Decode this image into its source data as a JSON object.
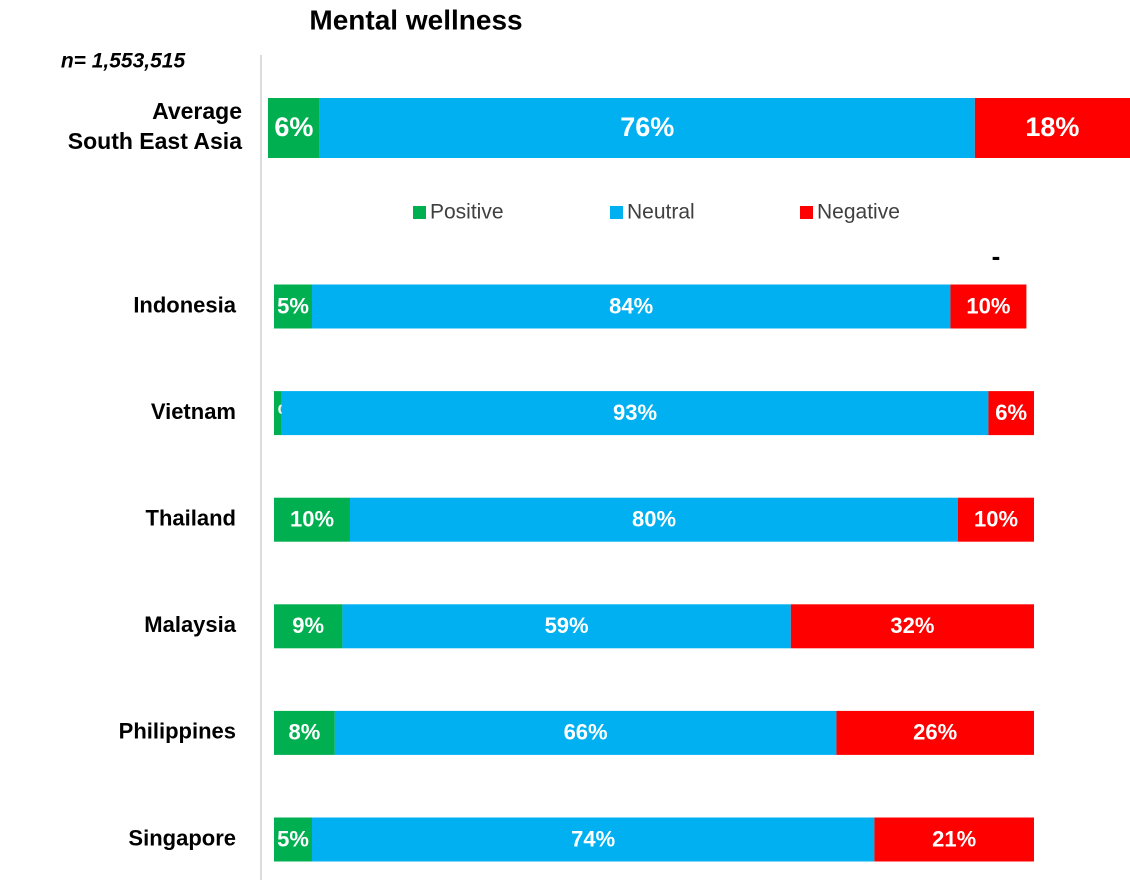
{
  "chart_data": [
    {
      "type": "stacked-bar",
      "title": "Mental wellness",
      "subtitle": "n= 1,553,515",
      "categories": [
        "Average\nSouth East Asia"
      ],
      "xlim": [
        0,
        100
      ],
      "series": [
        {
          "color": "#00b050",
          "values": [
            6
          ],
          "value_labels": [
            "6%"
          ]
        },
        {
          "color": "#00b0f0",
          "values": [
            76
          ],
          "value_labels": [
            "76%"
          ]
        },
        {
          "color": "#ff0000",
          "values": [
            18
          ],
          "value_labels": [
            "18%"
          ]
        }
      ]
    },
    {
      "type": "stacked-bar",
      "annotations": [
        "-"
      ],
      "categories": [
        "Indonesia",
        "Vietnam",
        "Thailand",
        "Malaysia",
        "Philippines",
        "Singapore"
      ],
      "xlim": [
        0,
        100
      ],
      "series": [
        {
          "name": "Positive",
          "color": "#00b050",
          "values": [
            5,
            1,
            10,
            9,
            8,
            5
          ],
          "value_labels": [
            "5%",
            "%",
            "10%",
            "9%",
            "8%",
            "5%"
          ]
        },
        {
          "name": "Neutral",
          "color": "#00b0f0",
          "values": [
            84,
            93,
            80,
            59,
            66,
            74
          ],
          "value_labels": [
            "84%",
            "93%",
            "80%",
            "59%",
            "66%",
            "74%"
          ]
        },
        {
          "name": "Negative",
          "color": "#ff0000",
          "values": [
            10,
            6,
            10,
            32,
            26,
            21
          ],
          "value_labels": [
            "10%",
            "6%",
            "10%",
            "32%",
            "26%",
            "21%"
          ]
        }
      ]
    }
  ]
}
